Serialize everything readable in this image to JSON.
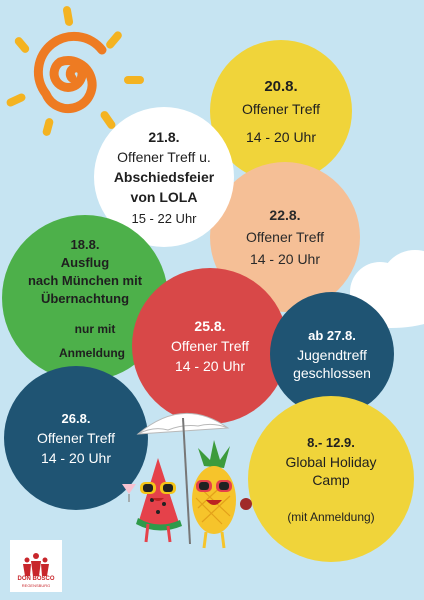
{
  "events": [
    {
      "id": "e20",
      "date": "20.8.",
      "title": "Offener Treff",
      "time": "14 - 20 Uhr"
    },
    {
      "id": "e21",
      "date": "21.8.",
      "title": "Offener Treff u.",
      "title2": "Abschiedsfeier",
      "title3": "von LOLA",
      "time": "15 - 22 Uhr"
    },
    {
      "id": "e22",
      "date": "22.8.",
      "title": "Offener Treff",
      "time": "14 - 20 Uhr"
    },
    {
      "id": "e18",
      "date": "18.8.",
      "title": "Ausflug",
      "title2": "nach München mit",
      "title3": "Übernachtung",
      "note": "nur mit",
      "note2": "Anmeldung"
    },
    {
      "id": "e25",
      "date": "25.8.",
      "title": "Offener Treff",
      "time": "14 - 20 Uhr"
    },
    {
      "id": "e27",
      "date": "ab 27.8.",
      "title": "Jugendtreff",
      "title2": "geschlossen"
    },
    {
      "id": "e26",
      "date": "26.8.",
      "title": "Offener Treff",
      "time": "14 - 20 Uhr"
    },
    {
      "id": "e8",
      "date": "8.- 12.9.",
      "title": "Global Holiday",
      "title2": "Camp",
      "note": "(mit Anmeldung)"
    }
  ],
  "logo": {
    "line1": "DON BOSCO",
    "line2": "REGENSBURG"
  },
  "colors": {
    "background": "#c6e4f2",
    "yellow": "#f0d43a",
    "peach": "#f5bf96",
    "green": "#4db04a",
    "red": "#d84848",
    "navy": "#1f5473",
    "sun": "#ee7b22"
  }
}
